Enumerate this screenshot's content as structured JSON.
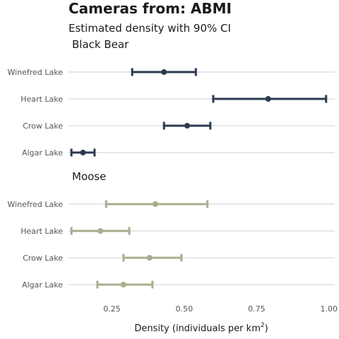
{
  "chart_data": {
    "type": "errorbar-dot",
    "title": "Cameras from: ABMI",
    "subtitle": "Estimated density with 90% CI",
    "xlabel": "Density (individuals per km",
    "xlabel_superscript": "2",
    "xlabel_close": ")",
    "xlim": [
      0.1,
      1.02
    ],
    "xticks": [
      0.25,
      0.5,
      0.75,
      1.0
    ],
    "xtick_labels": [
      "0.25",
      "0.50",
      "0.75",
      "1.00"
    ],
    "grid": "horizontal",
    "categories": [
      "Winefred Lake",
      "Heart Lake",
      "Crow Lake",
      "Algar Lake"
    ],
    "series": [
      {
        "name": "Black Bear",
        "color": "#2b3a4f",
        "estimate": [
          0.43,
          0.79,
          0.51,
          0.15
        ],
        "lower": [
          0.32,
          0.6,
          0.43,
          0.11
        ],
        "upper": [
          0.54,
          0.99,
          0.59,
          0.19
        ]
      },
      {
        "name": "Moose",
        "color": "#a8ad8c",
        "estimate": [
          0.4,
          0.21,
          0.38,
          0.29
        ],
        "lower": [
          0.23,
          0.11,
          0.29,
          0.2
        ],
        "upper": [
          0.58,
          0.31,
          0.49,
          0.39
        ]
      }
    ]
  }
}
